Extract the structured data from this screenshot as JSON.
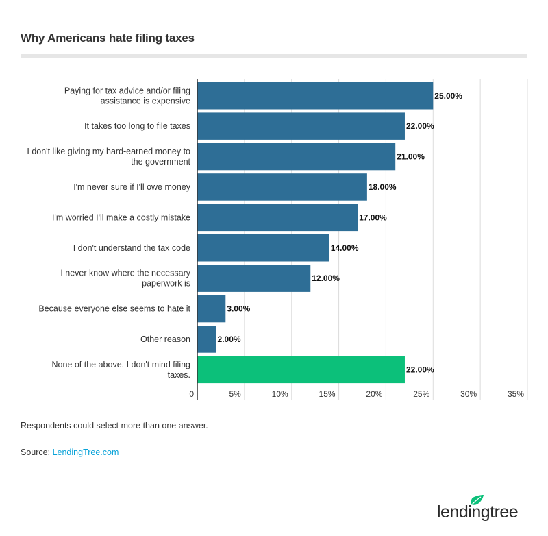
{
  "title": "Why Americans hate filing taxes",
  "footnote": "Respondents could select more than one answer.",
  "source_prefix": "Source:",
  "source_link": "LendingTree.com",
  "logo_text": "lendingtree",
  "colors": {
    "bar": "#2e6e96",
    "highlight": "#0cc07a",
    "grid": "#dcdcdc",
    "axis": "#333333"
  },
  "chart_data": {
    "type": "bar",
    "orientation": "horizontal",
    "title": "Why Americans hate filing taxes",
    "xlabel": "",
    "ylabel": "",
    "xlim": [
      0,
      35
    ],
    "grid": true,
    "ticks": [
      0,
      5,
      10,
      15,
      20,
      25,
      30,
      35
    ],
    "tick_labels": [
      "0",
      "5%",
      "10%",
      "15%",
      "20%",
      "25%",
      "30%",
      "35%"
    ],
    "categories": [
      "Paying for tax advice and/or filing assistance is expensive",
      "It takes too long to file taxes",
      "I don't like giving my hard-earned money to the government",
      "I'm never sure if I'll owe money",
      "I'm worried I'll make a costly mistake",
      "I don't understand the tax code",
      "I never know where the necessary paperwork is",
      "Because everyone else seems to hate it",
      "Other reason",
      "None of the above. I don't mind filing taxes."
    ],
    "category_lines": [
      [
        "Paying for tax advice and/or filing",
        "assistance is expensive"
      ],
      [
        "It takes too long to file taxes"
      ],
      [
        "I don't like giving my hard-earned money to",
        "the government"
      ],
      [
        "I'm never sure if I'll owe money"
      ],
      [
        "I'm worried I'll make a costly mistake"
      ],
      [
        "I don't understand the tax code"
      ],
      [
        "I never know where the necessary",
        "paperwork is"
      ],
      [
        "Because everyone else seems to hate it"
      ],
      [
        "Other reason"
      ],
      [
        "None of the above. I don't mind filing",
        "taxes."
      ]
    ],
    "values": [
      25,
      22,
      21,
      18,
      17,
      14,
      12,
      3,
      2,
      22
    ],
    "value_labels": [
      "25.00%",
      "22.00%",
      "21.00%",
      "18.00%",
      "17.00%",
      "14.00%",
      "12.00%",
      "3.00%",
      "2.00%",
      "22.00%"
    ],
    "highlight_index": 9
  }
}
